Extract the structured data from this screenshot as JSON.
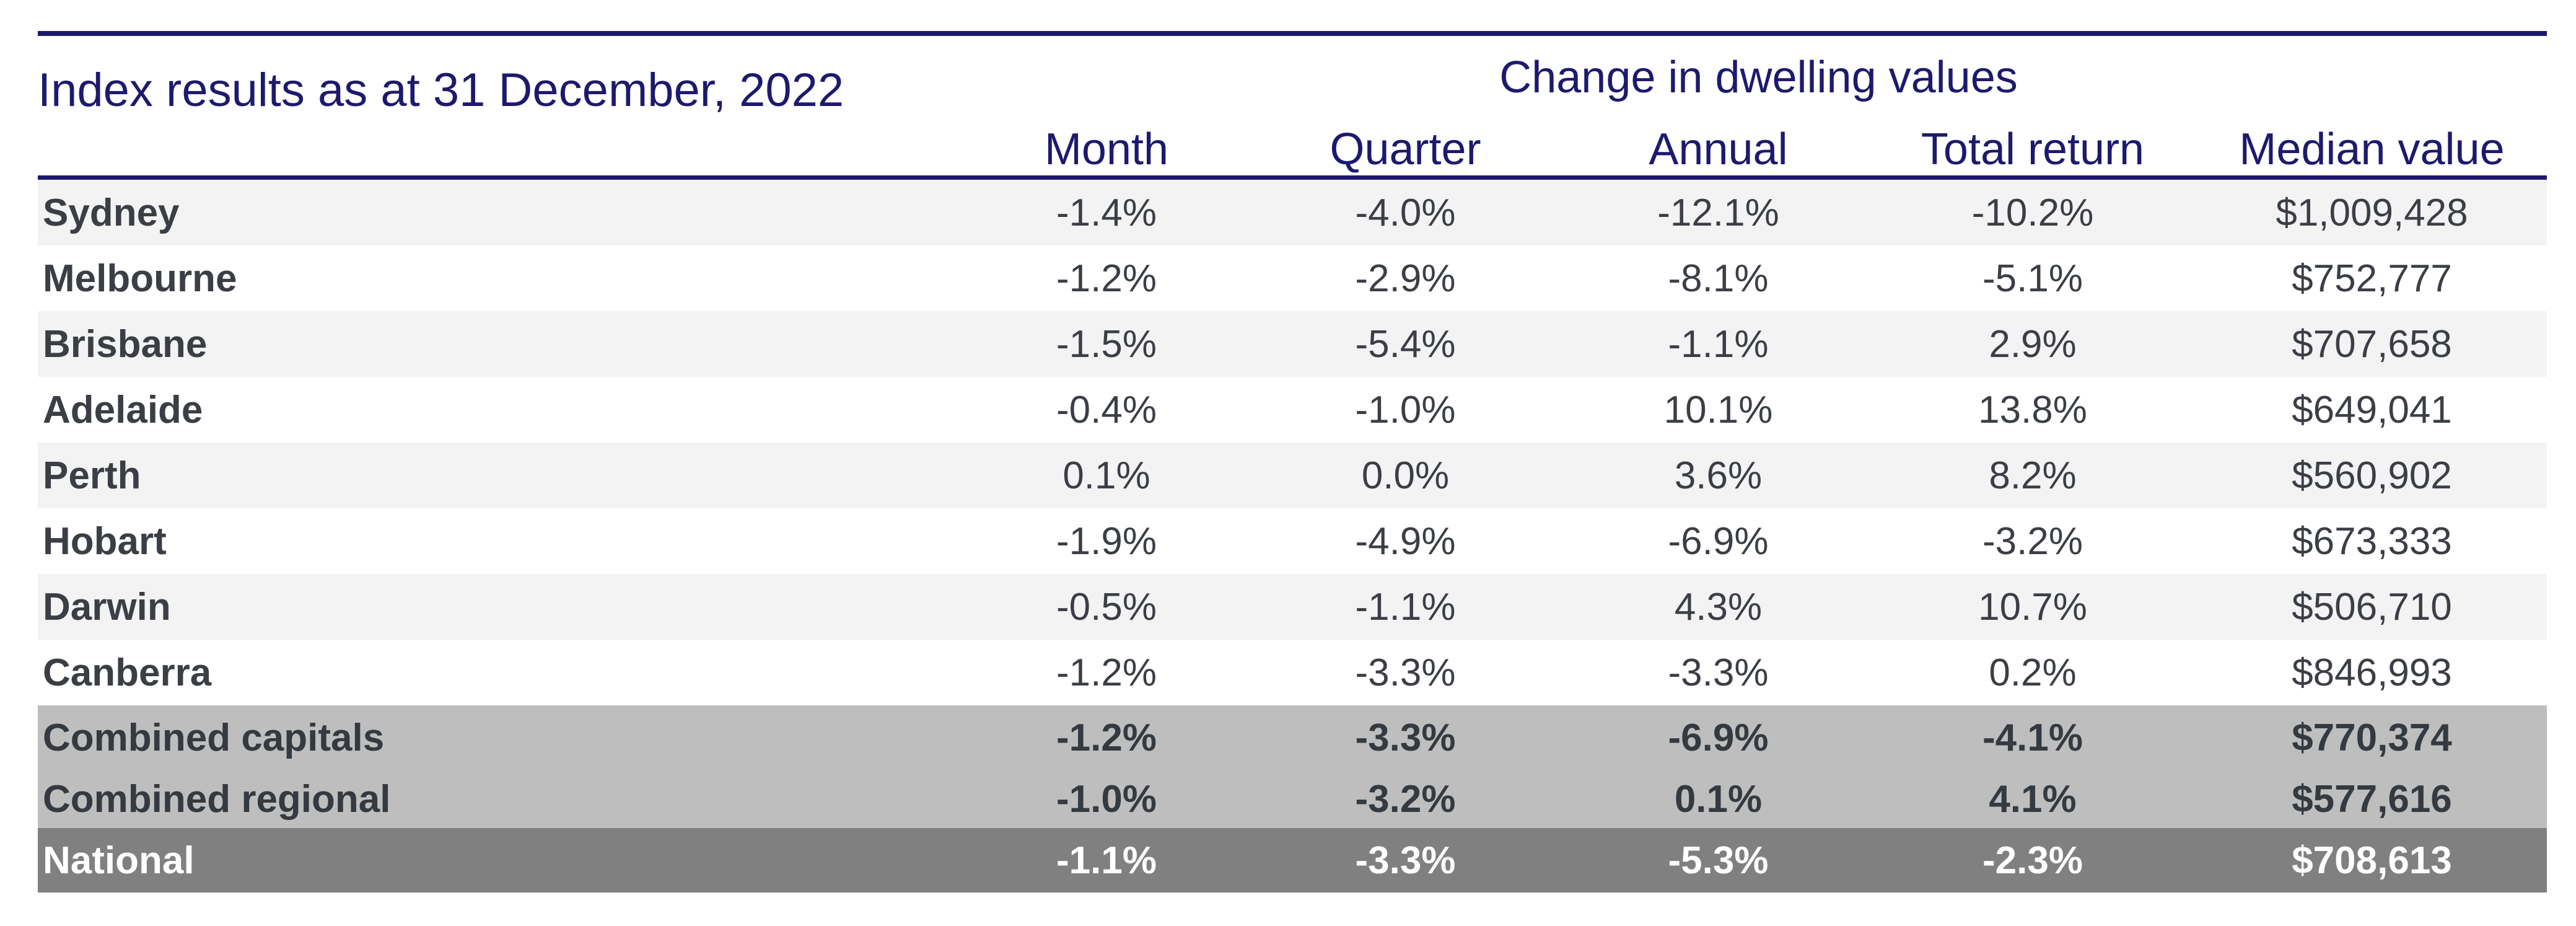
{
  "title": "Index results as at 31 December, 2022",
  "group_header": "Change in dwelling values",
  "columns": [
    "Month",
    "Quarter",
    "Annual",
    "Total return",
    "Median value"
  ],
  "colors": {
    "navy": "#1d1a6d",
    "row_shade": "#f3f3f4",
    "combined_bg": "#bebebe",
    "national_bg": "#808080",
    "text": "#3b3f45"
  },
  "rows": [
    {
      "region": "Sydney",
      "month": "-1.4%",
      "quarter": "-4.0%",
      "annual": "-12.1%",
      "total_return": "-10.2%",
      "median": "$1,009,428"
    },
    {
      "region": "Melbourne",
      "month": "-1.2%",
      "quarter": "-2.9%",
      "annual": "-8.1%",
      "total_return": "-5.1%",
      "median": "$752,777"
    },
    {
      "region": "Brisbane",
      "month": "-1.5%",
      "quarter": "-5.4%",
      "annual": "-1.1%",
      "total_return": "2.9%",
      "median": "$707,658"
    },
    {
      "region": "Adelaide",
      "month": "-0.4%",
      "quarter": "-1.0%",
      "annual": "10.1%",
      "total_return": "13.8%",
      "median": "$649,041"
    },
    {
      "region": "Perth",
      "month": "0.1%",
      "quarter": "0.0%",
      "annual": "3.6%",
      "total_return": "8.2%",
      "median": "$560,902"
    },
    {
      "region": "Hobart",
      "month": "-1.9%",
      "quarter": "-4.9%",
      "annual": "-6.9%",
      "total_return": "-3.2%",
      "median": "$673,333"
    },
    {
      "region": "Darwin",
      "month": "-0.5%",
      "quarter": "-1.1%",
      "annual": "4.3%",
      "total_return": "10.7%",
      "median": "$506,710"
    },
    {
      "region": "Canberra",
      "month": "-1.2%",
      "quarter": "-3.3%",
      "annual": "-3.3%",
      "total_return": "0.2%",
      "median": "$846,993"
    },
    {
      "region": "Combined capitals",
      "month": "-1.2%",
      "quarter": "-3.3%",
      "annual": "-6.9%",
      "total_return": "-4.1%",
      "median": "$770,374"
    },
    {
      "region": "Combined regional",
      "month": "-1.0%",
      "quarter": "-3.2%",
      "annual": "0.1%",
      "total_return": "4.1%",
      "median": "$577,616"
    },
    {
      "region": "National",
      "month": "-1.1%",
      "quarter": "-3.3%",
      "annual": "-5.3%",
      "total_return": "-2.3%",
      "median": "$708,613"
    }
  ]
}
